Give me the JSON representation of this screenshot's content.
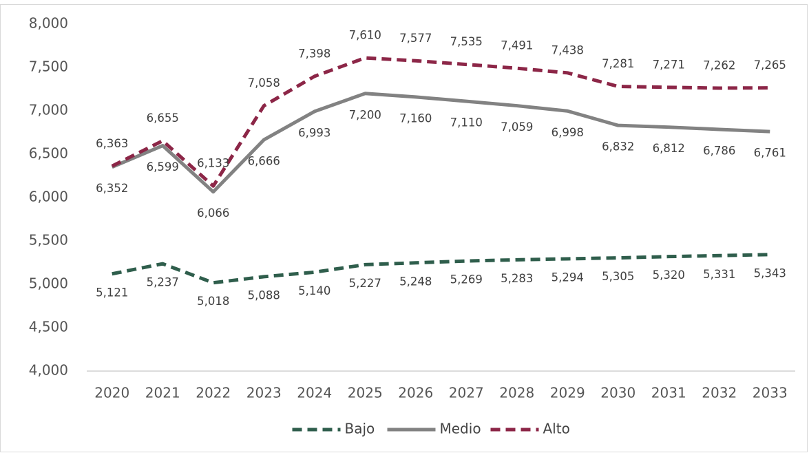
{
  "chart_data": {
    "type": "line",
    "categories": [
      "2020",
      "2021",
      "2022",
      "2023",
      "2024",
      "2025",
      "2026",
      "2027",
      "2028",
      "2029",
      "2030",
      "2031",
      "2032",
      "2033"
    ],
    "series": [
      {
        "name": "Bajo",
        "color": "#2f5e4c",
        "line_style": "dashed",
        "values": [
          5121,
          5237,
          5018,
          5088,
          5140,
          5227,
          5248,
          5269,
          5283,
          5294,
          5305,
          5320,
          5331,
          5343
        ],
        "value_labels": [
          "5,121",
          "5,237",
          "5,018",
          "5,088",
          "5,140",
          "5,227",
          "5,248",
          "5,269",
          "5,283",
          "5,294",
          "5,305",
          "5,320",
          "5,331",
          "5,343"
        ]
      },
      {
        "name": "Medio",
        "color": "#828282",
        "line_style": "solid",
        "values": [
          6352,
          6599,
          6066,
          6666,
          6993,
          7200,
          7160,
          7110,
          7059,
          6998,
          6832,
          6812,
          6786,
          6761
        ],
        "value_labels": [
          "6,352",
          "6,599",
          "6,066",
          "6,666",
          "6,993",
          "7,200",
          "7,160",
          "7,110",
          "7,059",
          "6,998",
          "6,832",
          "6,812",
          "6,786",
          "6,761"
        ]
      },
      {
        "name": "Alto",
        "color": "#8c2647",
        "line_style": "dashed",
        "values": [
          6363,
          6655,
          6133,
          7058,
          7398,
          7610,
          7577,
          7535,
          7491,
          7438,
          7281,
          7271,
          7262,
          7265
        ],
        "value_labels": [
          "6,363",
          "6,655",
          "6,133",
          "7,058",
          "7,398",
          "7,610",
          "7,577",
          "7,535",
          "7,491",
          "7,438",
          "7,281",
          "7,271",
          "7,262",
          "7,265"
        ]
      }
    ],
    "ylim": [
      4000,
      8000
    ],
    "yticks": [
      {
        "value": 4000,
        "label": "4,000"
      },
      {
        "value": 4500,
        "label": "4,500"
      },
      {
        "value": 5000,
        "label": "5,000"
      },
      {
        "value": 5500,
        "label": "5,500"
      },
      {
        "value": 6000,
        "label": "6,000"
      },
      {
        "value": 6500,
        "label": "6,500"
      },
      {
        "value": 7000,
        "label": "7,000"
      },
      {
        "value": 7500,
        "label": "7,500"
      },
      {
        "value": 8000,
        "label": "8,000"
      }
    ],
    "legend": "bottom"
  }
}
